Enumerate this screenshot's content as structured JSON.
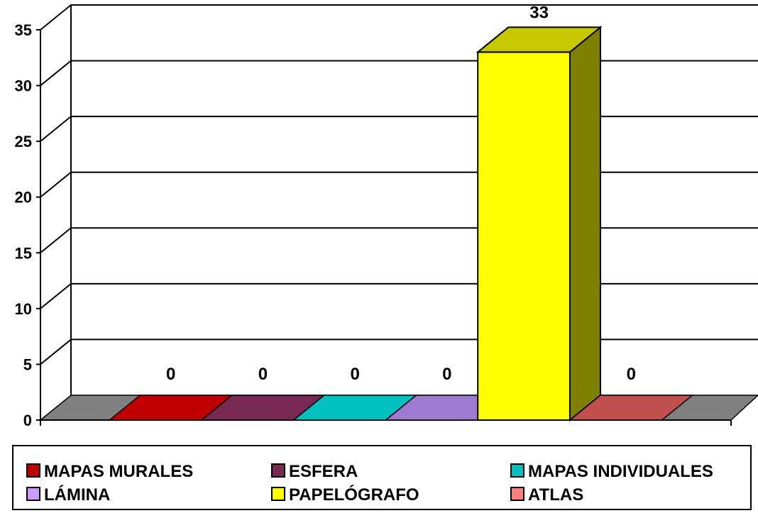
{
  "chart_data": {
    "type": "bar",
    "title": "",
    "xlabel": "",
    "ylabel": "",
    "ylim": [
      0,
      35
    ],
    "yticks": [
      0,
      5,
      10,
      15,
      20,
      25,
      30,
      35
    ],
    "grid": true,
    "legend_position": "bottom",
    "three_d": true,
    "categories": [
      "MAPAS MURALES",
      "ESFERA",
      "MAPAS INDIVIDUALES",
      "LÁMINA",
      "PAPELÓGRAFO",
      "ATLAS"
    ],
    "values": [
      0,
      0,
      0,
      0,
      33,
      0
    ],
    "data_labels": [
      "0",
      "0",
      "0",
      "0",
      "33",
      "0"
    ],
    "colors": [
      "#C00000",
      "#772953",
      "#00C0C0",
      "#9E7AD0",
      "#FFFF00",
      "#C0504D"
    ],
    "legend_colors": [
      "#C00000",
      "#772953",
      "#00C0C0",
      "#CC99FF",
      "#FFFF00",
      "#FF8080"
    ],
    "floor_color": "#808080"
  }
}
